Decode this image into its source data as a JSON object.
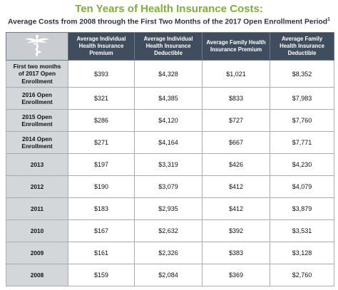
{
  "header": {
    "title": "Ten Years of Health Insurance Costs:",
    "subtitle": "Average Costs from 2008 through the First Two Months of the 2017 Open Enrollment Period",
    "footnote_marker": "1"
  },
  "table": {
    "columns": [
      "Average Individual Health Insurance Premium",
      "Average Individual Health Insurance Deductible",
      "Average Family Health Insurance Premium",
      "Average Family Health Insurance Deductible"
    ],
    "rows": [
      [
        "First two months of 2017 Open Enrollment",
        "$393",
        "$4,328",
        "$1,021",
        "$8,352"
      ],
      [
        "2016 Open Enrollment",
        "$321",
        "$4,385",
        "$833",
        "$7,983"
      ],
      [
        "2015 Open Enrollment",
        "$286",
        "$4,120",
        "$727",
        "$7,760"
      ],
      [
        "2014 Open Enrollment",
        "$271",
        "$4,164",
        "$667",
        "$7,771"
      ],
      [
        "2013",
        "$197",
        "$3,319",
        "$426",
        "$4,230"
      ],
      [
        "2012",
        "$190",
        "$3,079",
        "$412",
        "$4,079"
      ],
      [
        "2011",
        "$183",
        "$2,935",
        "$412",
        "$3,879"
      ],
      [
        "2010",
        "$167",
        "$2,632",
        "$392",
        "$3,531"
      ],
      [
        "2009",
        "$161",
        "$2,326",
        "$383",
        "$3,128"
      ],
      [
        "2008",
        "$159",
        "$2,084",
        "$369",
        "$2,760"
      ]
    ]
  }
}
